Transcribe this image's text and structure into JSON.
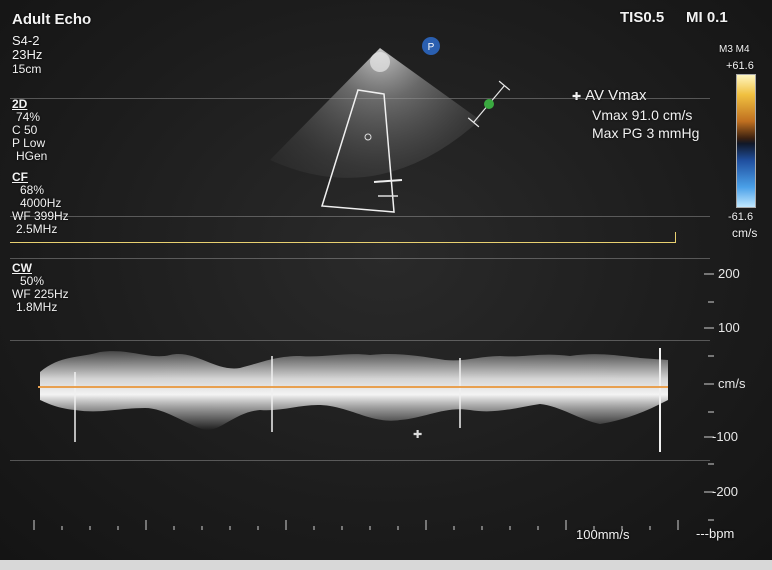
{
  "header": {
    "preset": "Adult Echo",
    "tis": "TIS0.5",
    "mi": "MI 0.1"
  },
  "probe": {
    "name": "S4-2",
    "frame_rate": "23Hz",
    "depth": "15cm"
  },
  "mode_2d": {
    "label": "2D",
    "gain": "74%",
    "compression": "C 50",
    "power": "P Low",
    "freq": "HGen"
  },
  "mode_cf": {
    "label": "CF",
    "gain": "68%",
    "prf": "4000Hz",
    "wall_filter": "WF 399Hz",
    "freq": "2.5MHz"
  },
  "mode_cw": {
    "label": "CW",
    "gain": "50%",
    "wall_filter": "WF 225Hz",
    "freq": "1.8MHz"
  },
  "measurement": {
    "title": "AV Vmax",
    "vmax": "Vmax   91.0 cm/s",
    "max_pg": "Max PG  3 mmHg"
  },
  "color_bar": {
    "map": "M3 M4",
    "top": "+61.6",
    "bottom": "-61.6",
    "unit": "cm/s"
  },
  "doppler_scale": {
    "labels": [
      "200",
      "100",
      "cm/s",
      "-100",
      "-200"
    ],
    "sweep_speed": "100mm/s",
    "heart_rate": "---bpm"
  },
  "markers": {
    "probe_orientation": "P"
  },
  "colors": {
    "baseline": "#e8a050",
    "color_bar_top": "#f0c040",
    "color_bar_bottom": "#4aa0e8",
    "probe_marker": "#2a5fb0",
    "cursor_dot": "#3aaa40"
  }
}
